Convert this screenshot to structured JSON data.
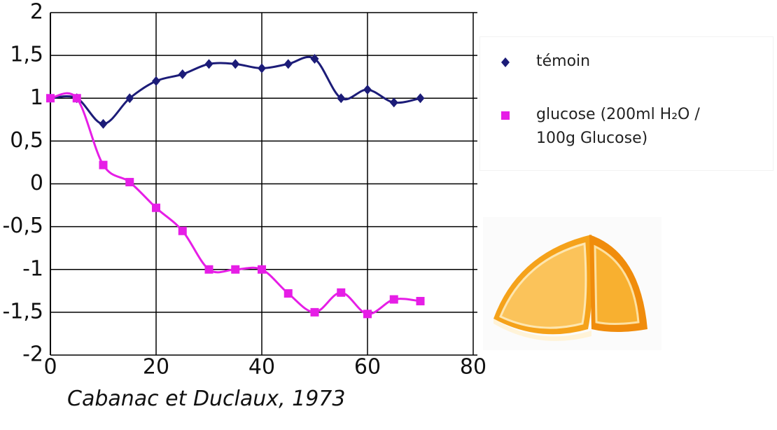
{
  "chart_data": {
    "type": "line",
    "x": [
      0,
      5,
      10,
      15,
      20,
      25,
      30,
      35,
      40,
      45,
      50,
      55,
      60,
      65,
      70
    ],
    "series": [
      {
        "name": "témoin",
        "color": "#1c1c78",
        "marker": "diamond",
        "values": [
          1,
          1,
          0.7,
          1,
          1.2,
          1.28,
          1.4,
          1.4,
          1.35,
          1.4,
          1.46,
          1,
          1.1,
          0.95,
          1
        ]
      },
      {
        "name": "glucose (200ml H₂O / 100g Glucose)",
        "color": "#e61ee6",
        "marker": "square",
        "values": [
          1,
          1,
          0.22,
          0.02,
          -0.28,
          -0.55,
          -1,
          -1,
          -1,
          -1.28,
          -1.5,
          -1.27,
          -1.52,
          -1.35,
          -1.37
        ]
      }
    ],
    "xlim": [
      0,
      80
    ],
    "xticks": [
      0,
      20,
      40,
      60,
      80
    ],
    "ylim": [
      -2,
      2
    ],
    "yticks": [
      {
        "value": -2,
        "label": "-2"
      },
      {
        "value": -1.5,
        "label": "-1,5"
      },
      {
        "value": -1,
        "label": "-1"
      },
      {
        "value": -0.5,
        "label": "-0,5"
      },
      {
        "value": 0,
        "label": "0"
      },
      {
        "value": 0.5,
        "label": "0,5"
      },
      {
        "value": 1,
        "label": "1"
      },
      {
        "value": 1.5,
        "label": "1,5"
      },
      {
        "value": 2,
        "label": "2"
      }
    ],
    "grid": true,
    "source": "Cabanac et Duclaux, 1973"
  }
}
